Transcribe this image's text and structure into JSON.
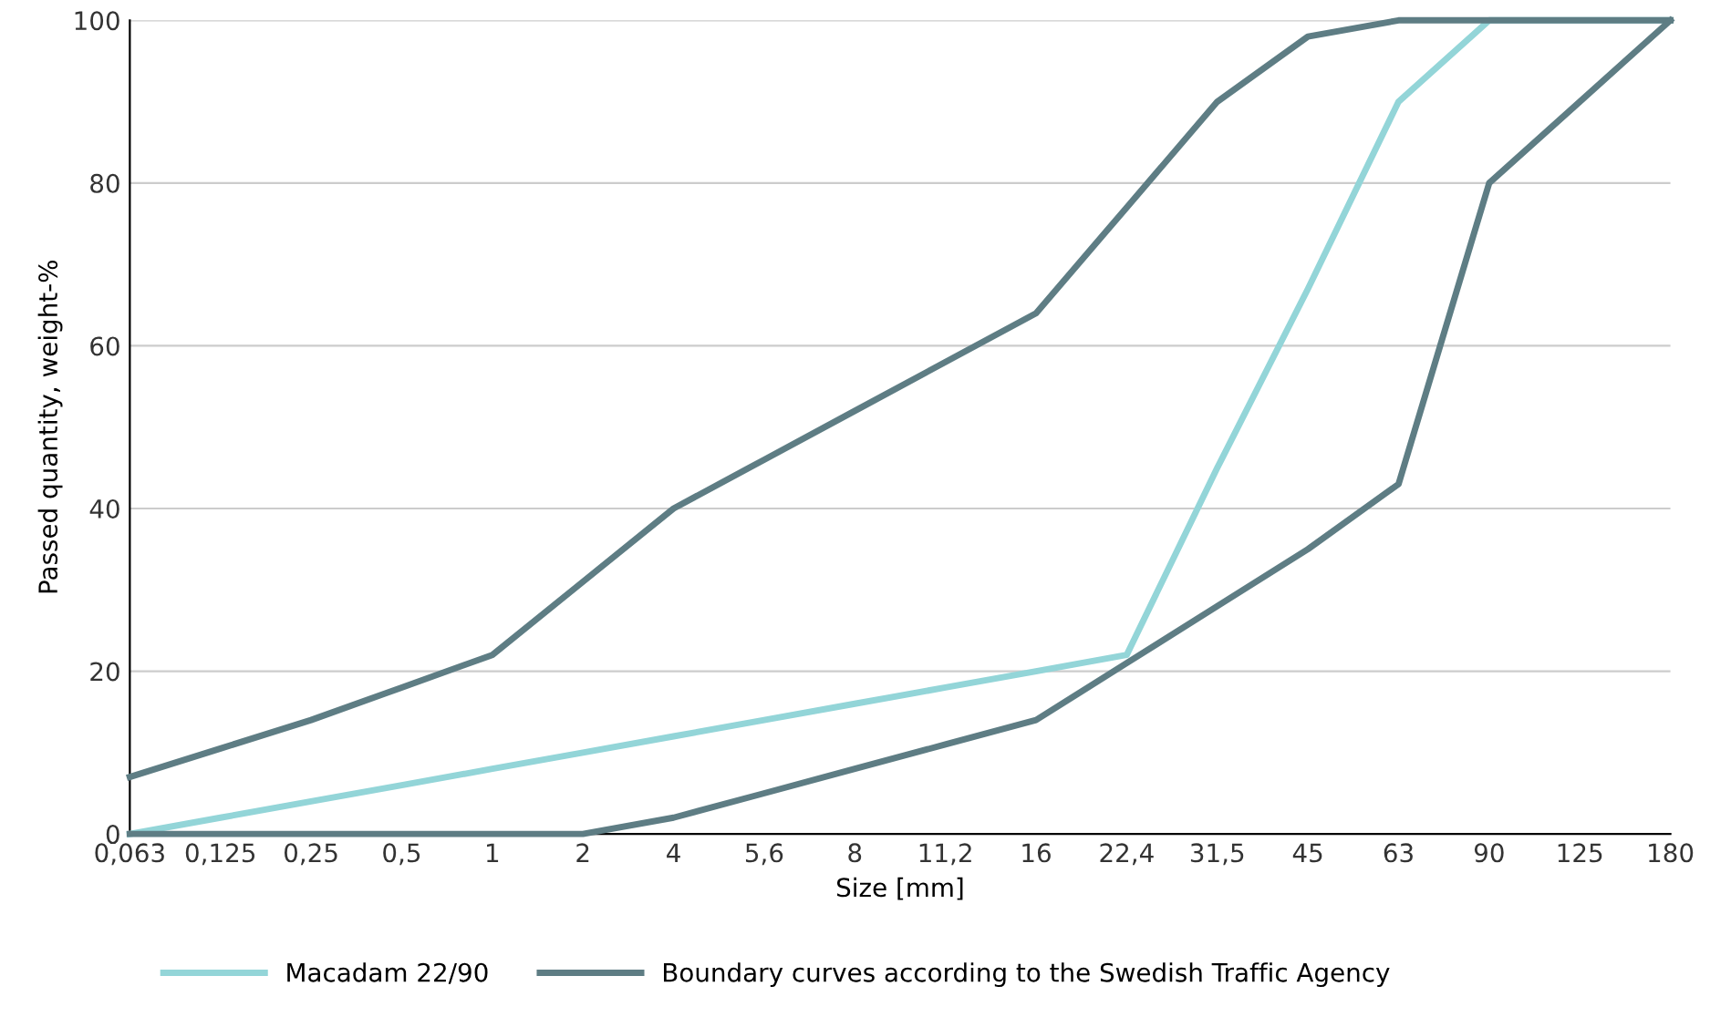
{
  "chart_data": {
    "type": "line",
    "xlabel": "Size [mm]",
    "ylabel": "Passed quantity, weight-%",
    "categories": [
      "0,063",
      "0,125",
      "0,25",
      "0,5",
      "1",
      "2",
      "4",
      "5,6",
      "8",
      "11,2",
      "16",
      "22,4",
      "31,5",
      "45",
      "63",
      "90",
      "125",
      "180"
    ],
    "series": [
      {
        "name": "Macadam 22/90",
        "color": "#93d5d8",
        "values": [
          0,
          2,
          4,
          6,
          8,
          10,
          12,
          14,
          16,
          18,
          20,
          22,
          45,
          67,
          90,
          100,
          100,
          100
        ]
      },
      {
        "name": "Boundary curves according to the Swedish Traffic Agency",
        "color": "#5e7d84",
        "values": [
          7,
          10.5,
          14,
          18,
          22,
          31,
          40,
          46,
          52,
          58,
          64,
          77,
          90,
          98,
          100,
          100,
          100,
          100
        ]
      },
      {
        "color": "#5e7d84",
        "values": [
          0,
          0,
          0,
          0,
          0,
          0,
          2,
          5,
          8,
          11,
          14,
          21,
          28,
          35,
          43,
          80,
          90,
          100
        ]
      }
    ],
    "ylim": [
      0,
      100
    ],
    "yticks": [
      0,
      20,
      40,
      60,
      80,
      100
    ],
    "grid": "y",
    "legend": "bottom",
    "marker": "none",
    "line_style": "solid"
  }
}
